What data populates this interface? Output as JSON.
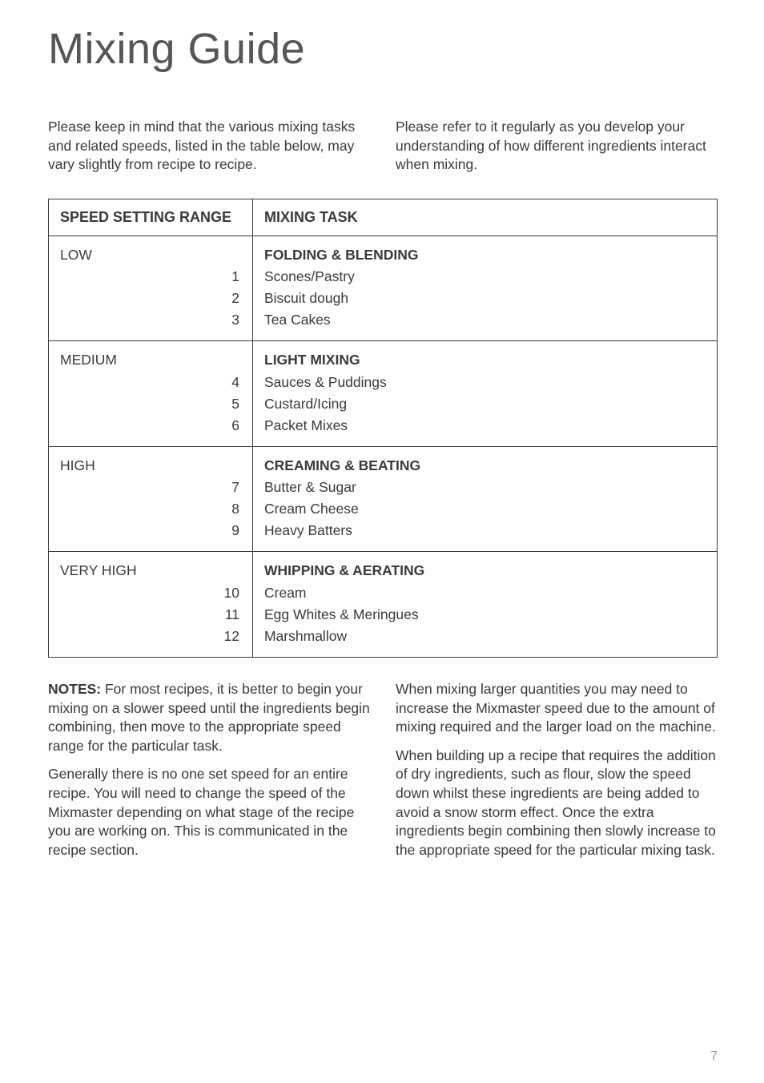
{
  "title": "Mixing Guide",
  "intro": {
    "left": "Please keep in mind that the various mixing tasks and related speeds, listed in the table below, may vary slightly from recipe to recipe.",
    "right": "Please refer to it regularly as you develop your understanding of how different ingredients interact when mixing."
  },
  "table": {
    "headers": {
      "col1": "SPEED SETTING RANGE",
      "col2": "MIXING TASK"
    },
    "rows": [
      {
        "label": "LOW",
        "numbers": [
          "1",
          "2",
          "3"
        ],
        "heading": "FOLDING & BLENDING",
        "items": [
          "Scones/Pastry",
          "Biscuit dough",
          "Tea Cakes"
        ]
      },
      {
        "label": "MEDIUM",
        "numbers": [
          "4",
          "5",
          "6"
        ],
        "heading": "LIGHT MIXING",
        "items": [
          "Sauces & Puddings",
          "Custard/Icing",
          "Packet Mixes"
        ]
      },
      {
        "label": "HIGH",
        "numbers": [
          "7",
          "8",
          "9"
        ],
        "heading": "CREAMING & BEATING",
        "items": [
          "Butter & Sugar",
          "Cream Cheese",
          "Heavy Batters"
        ]
      },
      {
        "label": "VERY HIGH",
        "numbers": [
          "10",
          "11",
          "12"
        ],
        "heading": "WHIPPING & AERATING",
        "items": [
          "Cream",
          "Egg Whites & Meringues",
          "Marshmallow"
        ]
      }
    ]
  },
  "notes": {
    "label": "NOTES:",
    "left_p1_rest": " For most recipes, it is better to begin your mixing on a slower speed until the ingredients begin combining, then move to the appropriate speed range for the particular task.",
    "left_p2": "Generally there is no one set speed for an entire recipe. You will need to change the speed of the Mixmaster depending on what stage of the recipe you are working on. This is communicated in the recipe section.",
    "right_p1": "When mixing larger quantities you may need to increase the Mixmaster speed due to the amount of mixing required and the larger load on the machine.",
    "right_p2": "When building up a recipe that requires the addition of dry ingredients, such as flour, slow the speed down whilst these ingredients are being added to avoid a snow storm effect. Once the extra ingredients begin combining then slowly increase to the appropriate speed for the particular mixing task."
  },
  "page_number": "7"
}
